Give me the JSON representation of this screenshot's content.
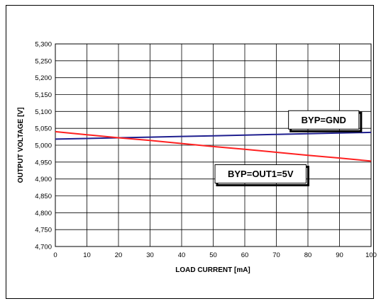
{
  "chart_data": {
    "type": "line",
    "xlabel": "LOAD CURRENT [mA]",
    "ylabel": "OUTPUT VOLTAGE [V]",
    "xlim": [
      0,
      100
    ],
    "ylim": [
      4.7,
      5.3
    ],
    "x_ticks": [
      0,
      10,
      20,
      30,
      40,
      50,
      60,
      70,
      80,
      90,
      100
    ],
    "y_ticks": [
      4.7,
      4.75,
      4.8,
      4.85,
      4.9,
      4.95,
      5.0,
      5.05,
      5.1,
      5.15,
      5.2,
      5.25,
      5.3
    ],
    "x_tick_labels": [
      "0",
      "10",
      "20",
      "30",
      "40",
      "50",
      "60",
      "70",
      "80",
      "90",
      "100"
    ],
    "y_tick_labels": [
      "4,700",
      "4,750",
      "4,800",
      "4,850",
      "4,900",
      "4,950",
      "5,000",
      "5,050",
      "5,100",
      "5,150",
      "5,200",
      "5,250",
      "5,300"
    ],
    "grid": true,
    "legend": "none",
    "series": [
      {
        "color": "#1f1f8f",
        "x": [
          0,
          10,
          20,
          30,
          40,
          50,
          60,
          70,
          80,
          90,
          100
        ],
        "values": [
          5.018,
          5.02,
          5.022,
          5.024,
          5.026,
          5.028,
          5.03,
          5.032,
          5.034,
          5.036,
          5.038
        ]
      },
      {
        "color": "#ff2020",
        "x": [
          0,
          10,
          20,
          30,
          40,
          50,
          60,
          70,
          80,
          90,
          100
        ],
        "values": [
          5.04,
          5.031,
          5.022,
          5.014,
          5.005,
          4.996,
          4.988,
          4.979,
          4.97,
          4.962,
          4.953
        ]
      }
    ],
    "annotations": [
      {
        "text": "BYP=GND",
        "x": 85,
        "y": 5.075
      },
      {
        "text": "BYP=OUT1=5V",
        "x": 65,
        "y": 4.915
      }
    ]
  }
}
